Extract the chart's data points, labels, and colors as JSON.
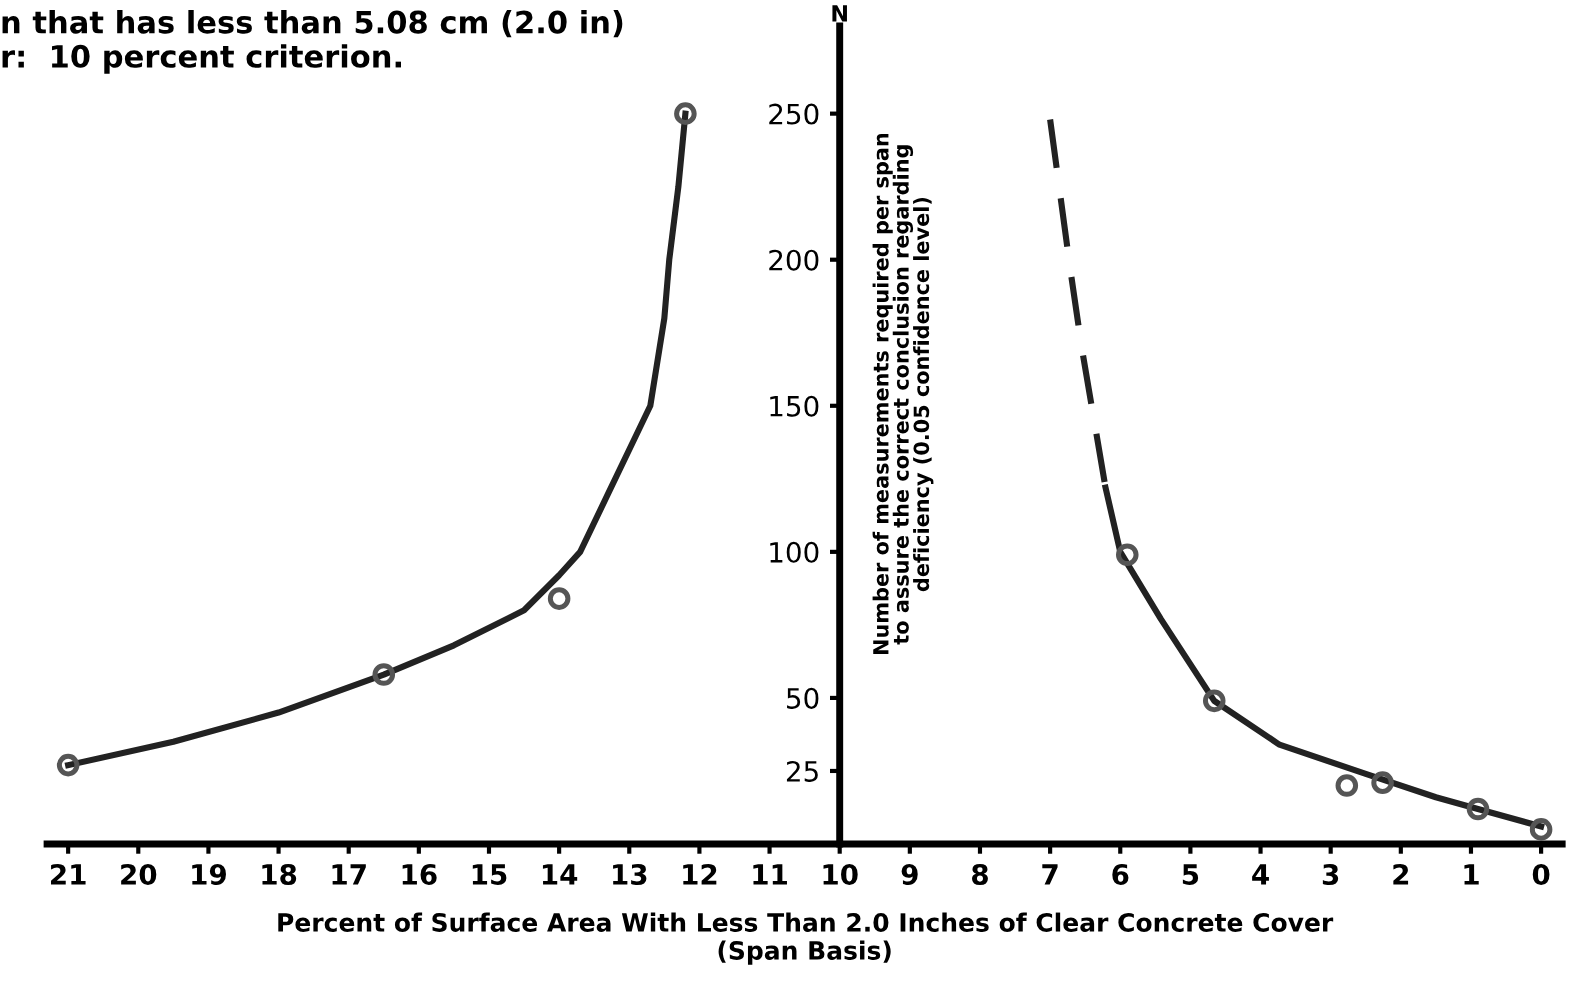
{
  "chart_data": {
    "type": "scatter",
    "title": "n that has less than 5.08 cm (2.0 in)\nr:  10 percent criterion.",
    "xlabel": "Percent of Surface Area With Less Than 2.0 Inches of Clear Concrete Cover\n(Span Basis)",
    "ylabel": "Number of measurements required per span\nto assure the correct conclusion regarding\ndeficiency (0.05 confidence level)",
    "annotations": [
      "N"
    ],
    "xlim": [
      21.3,
      -0.3
    ],
    "xticks": [
      21,
      20,
      19,
      18,
      17,
      16,
      15,
      14,
      13,
      12,
      11,
      10,
      9,
      8,
      7,
      6,
      5,
      4,
      3,
      2,
      1,
      0
    ],
    "ylim": [
      0,
      280
    ],
    "yticks": [
      25,
      50,
      100,
      150,
      200,
      250
    ],
    "grid": false,
    "legend": false,
    "series": [
      {
        "color": "#555555",
        "marker": "circle",
        "x": [
          21,
          16.5,
          14,
          12.2
        ],
        "values": [
          27,
          58,
          84,
          250
        ]
      },
      {
        "color": "#555555",
        "marker": "circle",
        "x": [
          5.9,
          4.66,
          2.77,
          2.26,
          0.9,
          0
        ],
        "values": [
          99,
          49,
          20,
          21,
          12,
          5
        ]
      },
      {
        "type": "line",
        "color": "#222222",
        "line_style": "solid",
        "x": [
          21,
          19.5,
          18,
          16.5,
          15.5,
          14.5,
          14,
          13.7,
          13.3,
          12.9,
          12.7,
          12.5,
          12.43,
          12.3,
          12.2
        ],
        "values": [
          27,
          35,
          45,
          58,
          68,
          80,
          92,
          100,
          120,
          140,
          150,
          180,
          200,
          225,
          250
        ]
      },
      {
        "type": "line",
        "color": "#222222",
        "line_style": "dashed",
        "x": [
          7,
          6.72,
          6.55,
          6.21
        ],
        "values": [
          248,
          198,
          170,
          122
        ]
      },
      {
        "type": "line",
        "color": "#222222",
        "line_style": "solid",
        "x": [
          6.21,
          6,
          5.42,
          4.66,
          3.73,
          2.5,
          1.5,
          0.9,
          0
        ],
        "values": [
          122,
          100,
          77,
          49,
          34,
          24,
          16,
          12,
          6
        ]
      }
    ]
  }
}
